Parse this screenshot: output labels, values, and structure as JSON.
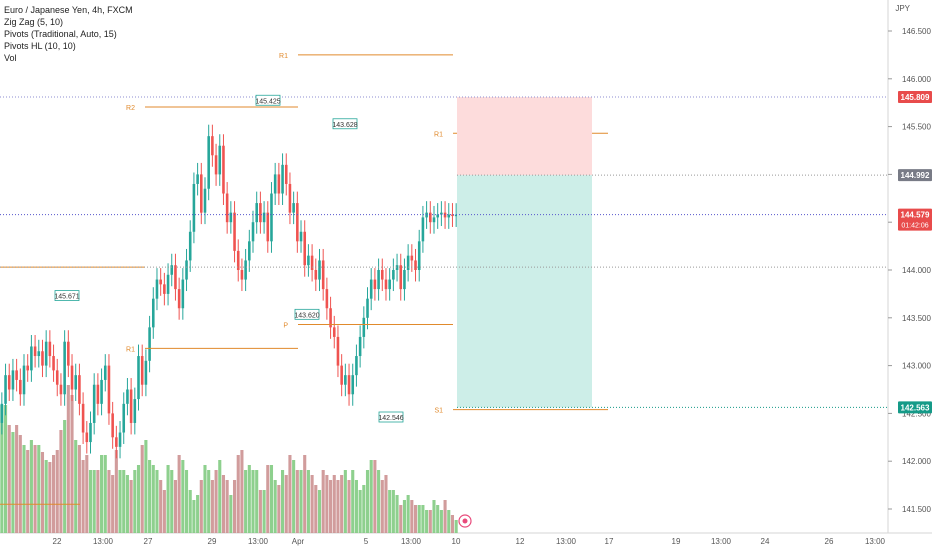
{
  "legend": {
    "title": "Euro / Japanese Yen, 4h, FXCM",
    "indicators": [
      "Zig Zag (5, 10)",
      "Pivots (Traditional, Auto, 15)",
      "Pivots HL (10, 10)",
      "Vol"
    ]
  },
  "currency": "JPY",
  "price_axis": {
    "ticks": [
      "146.500",
      "146.000",
      "145.500",
      "145.000",
      "144.500",
      "144.000",
      "143.500",
      "143.000",
      "142.500",
      "142.000",
      "141.500"
    ],
    "badges": [
      {
        "value": "145.809",
        "color": "#e84b4b"
      },
      {
        "value": "144.992",
        "color": "#787b86"
      },
      {
        "value": "144.579",
        "sub": "01:42:06",
        "color": "#e84b4b"
      },
      {
        "value": "142.563",
        "color": "#159a88"
      }
    ]
  },
  "time_axis": {
    "labels": [
      "22",
      "13:00",
      "27",
      "29",
      "13:00",
      "Apr",
      "5",
      "13:00",
      "10",
      "12",
      "13:00",
      "17",
      "19",
      "13:00",
      "24",
      "26",
      "13:00"
    ]
  },
  "pivot_labels": [
    "R1",
    "R2",
    "R1",
    "P",
    "R1",
    "S1"
  ],
  "hl_labels": [
    "145.671",
    "145.425",
    "143.628",
    "143.620",
    "142.546"
  ],
  "colors": {
    "up": "#26a69a",
    "down": "#ef5350",
    "vol_up": "#7ac87a",
    "vol_down": "#c98b8b",
    "pivot": "#e08a2c",
    "stop_zone": "#fddcdc",
    "target_zone": "#cdeee8"
  },
  "chart_data": {
    "type": "candlestick",
    "price_range": [
      141.3,
      146.85
    ],
    "zigzag_highs_lows": [
      143.628,
      145.671,
      143.62,
      145.425,
      142.546
    ],
    "position_box": {
      "stop": 145.809,
      "entry": 144.992,
      "target": 142.563
    },
    "last_price": 144.579
  }
}
